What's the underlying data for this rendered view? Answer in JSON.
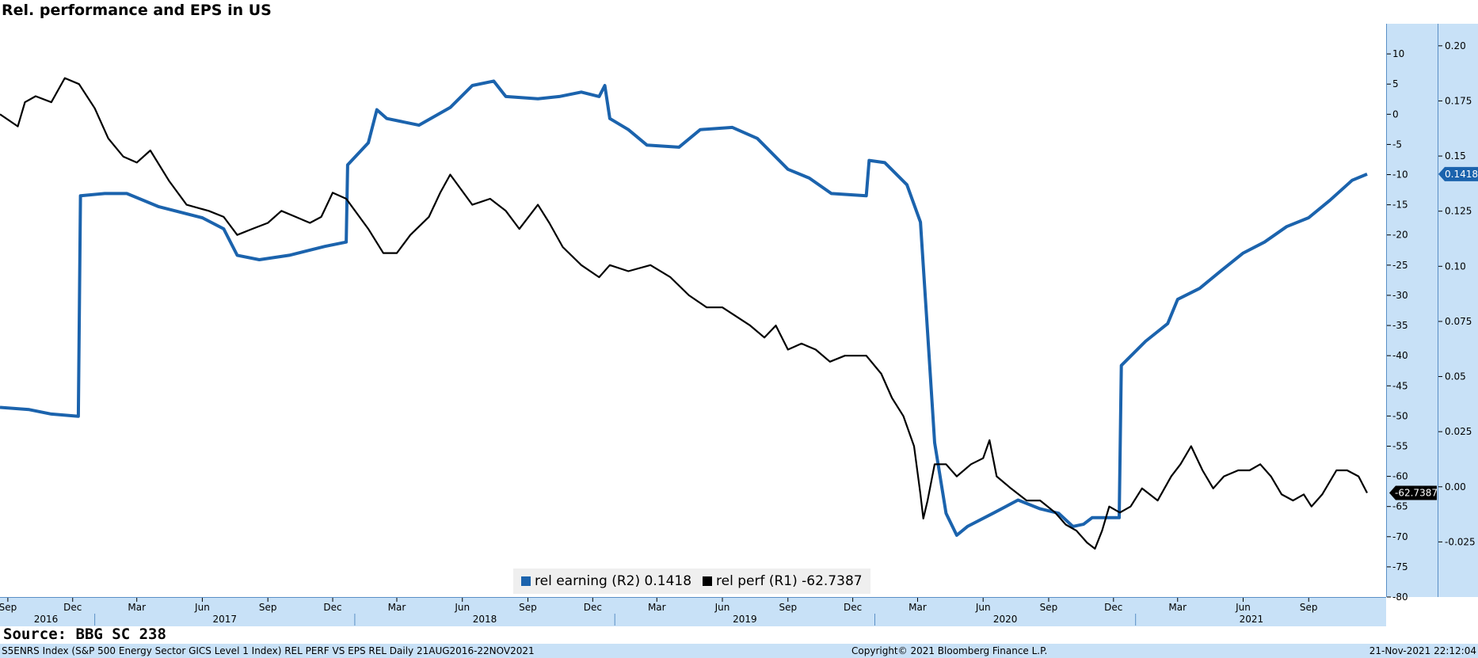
{
  "title": "Rel. performance and EPS in US",
  "source": "Source: BBG SC 238",
  "footer": {
    "left": "S5ENRS Index (S&P 500 Energy Sector GICS Level 1 Index) REL PERF VS EPS REL  Daily 21AUG2016-22NOV2021",
    "center": "Copyright© 2021 Bloomberg Finance L.P.",
    "right": "21-Nov-2021 22:12:04"
  },
  "colors": {
    "rel_earning": "#1b63ad",
    "rel_perf": "#000000",
    "axis_panel": "#c8e1f7"
  },
  "legend": [
    {
      "label": "rel earning (R2) 0.1418",
      "color": "#1b63ad"
    },
    {
      "label": "rel perf (R1) -62.7387",
      "color": "#000000"
    }
  ],
  "chart_data": {
    "type": "line",
    "title": "Rel. performance and EPS in US",
    "x_range": [
      "2016-08-21",
      "2021-11-22"
    ],
    "x_month_ticks": [
      "Sep",
      "Dec",
      "Mar",
      "Jun",
      "Sep",
      "Dec",
      "Mar",
      "Jun",
      "Sep",
      "Dec",
      "Mar",
      "Jun",
      "Sep",
      "Dec",
      "Mar",
      "Jun",
      "Sep",
      "Dec",
      "Mar",
      "Jun",
      "Sep"
    ],
    "x_year_labels": [
      "2016",
      "2017",
      "2018",
      "2019",
      "2020",
      "2021"
    ],
    "axes": {
      "R1": {
        "range": [
          -80,
          15
        ],
        "ticks": [
          "10",
          "5",
          "0",
          "-5",
          "-10",
          "-15",
          "-20",
          "-25",
          "-30",
          "-35",
          "-40",
          "-45",
          "-50",
          "-55",
          "-60",
          "-65",
          "-70",
          "-75",
          "-80"
        ]
      },
      "R2": {
        "range": [
          -0.05,
          0.21
        ],
        "ticks": [
          "0.20",
          "0.175",
          "0.15",
          "0.125",
          "0.10",
          "0.075",
          "0.05",
          "0.025",
          "0.00",
          "-0.025"
        ]
      }
    },
    "last_value_labels": {
      "rel_perf": "-62.7387",
      "rel_earning": "0.1418"
    },
    "series": [
      {
        "name": "rel earning (R2)",
        "axis": "R2",
        "color": "#1b63ad",
        "points": [
          [
            "2016-08-21",
            0.036
          ],
          [
            "2016-10-01",
            0.035
          ],
          [
            "2016-11-01",
            0.033
          ],
          [
            "2016-12-09",
            0.032
          ],
          [
            "2016-12-12",
            0.132
          ],
          [
            "2017-01-15",
            0.133
          ],
          [
            "2017-02-15",
            0.133
          ],
          [
            "2017-04-01",
            0.127
          ],
          [
            "2017-06-01",
            0.122
          ],
          [
            "2017-07-01",
            0.117
          ],
          [
            "2017-07-20",
            0.105
          ],
          [
            "2017-08-20",
            0.103
          ],
          [
            "2017-10-01",
            0.105
          ],
          [
            "2017-11-20",
            0.109
          ],
          [
            "2017-12-20",
            0.111
          ],
          [
            "2017-12-22",
            0.146
          ],
          [
            "2018-01-20",
            0.156
          ],
          [
            "2018-02-01",
            0.171
          ],
          [
            "2018-02-15",
            0.167
          ],
          [
            "2018-04-01",
            0.164
          ],
          [
            "2018-05-15",
            0.172
          ],
          [
            "2018-06-15",
            0.182
          ],
          [
            "2018-07-15",
            0.184
          ],
          [
            "2018-08-01",
            0.177
          ],
          [
            "2018-09-15",
            0.176
          ],
          [
            "2018-10-15",
            0.177
          ],
          [
            "2018-11-15",
            0.179
          ],
          [
            "2018-12-10",
            0.177
          ],
          [
            "2018-12-18",
            0.182
          ],
          [
            "2018-12-25",
            0.167
          ],
          [
            "2019-01-20",
            0.162
          ],
          [
            "2019-02-15",
            0.155
          ],
          [
            "2019-04-01",
            0.154
          ],
          [
            "2019-05-01",
            0.162
          ],
          [
            "2019-06-15",
            0.163
          ],
          [
            "2019-07-20",
            0.158
          ],
          [
            "2019-09-01",
            0.144
          ],
          [
            "2019-10-01",
            0.14
          ],
          [
            "2019-11-01",
            0.133
          ],
          [
            "2019-12-20",
            0.132
          ],
          [
            "2019-12-24",
            0.148
          ],
          [
            "2020-01-15",
            0.147
          ],
          [
            "2020-02-15",
            0.137
          ],
          [
            "2020-03-05",
            0.12
          ],
          [
            "2020-03-15",
            0.07
          ],
          [
            "2020-03-25",
            0.02
          ],
          [
            "2020-04-10",
            -0.012
          ],
          [
            "2020-04-25",
            -0.022
          ],
          [
            "2020-05-10",
            -0.018
          ],
          [
            "2020-06-15",
            -0.012
          ],
          [
            "2020-07-20",
            -0.006
          ],
          [
            "2020-08-20",
            -0.01
          ],
          [
            "2020-09-15",
            -0.012
          ],
          [
            "2020-10-05",
            -0.018
          ],
          [
            "2020-10-20",
            -0.017
          ],
          [
            "2020-11-01",
            -0.014
          ],
          [
            "2020-12-09",
            -0.014
          ],
          [
            "2020-12-12",
            0.055
          ],
          [
            "2021-01-15",
            0.066
          ],
          [
            "2021-02-15",
            0.074
          ],
          [
            "2021-03-01",
            0.085
          ],
          [
            "2021-04-01",
            0.09
          ],
          [
            "2021-05-01",
            0.098
          ],
          [
            "2021-06-01",
            0.106
          ],
          [
            "2021-07-01",
            0.111
          ],
          [
            "2021-08-01",
            0.118
          ],
          [
            "2021-09-01",
            0.122
          ],
          [
            "2021-10-01",
            0.13
          ],
          [
            "2021-11-01",
            0.139
          ],
          [
            "2021-11-22",
            0.1418
          ]
        ]
      },
      {
        "name": "rel perf (R1)",
        "axis": "R1",
        "color": "#000000",
        "points": [
          [
            "2016-08-21",
            0
          ],
          [
            "2016-09-15",
            -2
          ],
          [
            "2016-09-25",
            2
          ],
          [
            "2016-10-10",
            3
          ],
          [
            "2016-11-01",
            2
          ],
          [
            "2016-11-20",
            6
          ],
          [
            "2016-12-10",
            5
          ],
          [
            "2017-01-01",
            1
          ],
          [
            "2017-01-20",
            -4
          ],
          [
            "2017-02-10",
            -7
          ],
          [
            "2017-03-01",
            -8
          ],
          [
            "2017-03-20",
            -6
          ],
          [
            "2017-04-15",
            -11
          ],
          [
            "2017-05-10",
            -15
          ],
          [
            "2017-06-10",
            -16
          ],
          [
            "2017-07-01",
            -17
          ],
          [
            "2017-07-20",
            -20
          ],
          [
            "2017-08-10",
            -19
          ],
          [
            "2017-09-01",
            -18
          ],
          [
            "2017-09-20",
            -16
          ],
          [
            "2017-10-10",
            -17
          ],
          [
            "2017-10-30",
            -18
          ],
          [
            "2017-11-15",
            -17
          ],
          [
            "2017-12-01",
            -13
          ],
          [
            "2017-12-20",
            -14
          ],
          [
            "2018-01-20",
            -19
          ],
          [
            "2018-02-10",
            -23
          ],
          [
            "2018-03-01",
            -23
          ],
          [
            "2018-03-20",
            -20
          ],
          [
            "2018-04-15",
            -17
          ],
          [
            "2018-05-01",
            -13
          ],
          [
            "2018-05-15",
            -10
          ],
          [
            "2018-06-15",
            -15
          ],
          [
            "2018-07-10",
            -14
          ],
          [
            "2018-08-01",
            -16
          ],
          [
            "2018-08-20",
            -19
          ],
          [
            "2018-09-15",
            -15
          ],
          [
            "2018-10-01",
            -18
          ],
          [
            "2018-10-20",
            -22
          ],
          [
            "2018-11-15",
            -25
          ],
          [
            "2018-12-10",
            -27
          ],
          [
            "2018-12-25",
            -25
          ],
          [
            "2019-01-20",
            -26
          ],
          [
            "2019-02-20",
            -25
          ],
          [
            "2019-03-20",
            -27
          ],
          [
            "2019-04-15",
            -30
          ],
          [
            "2019-05-10",
            -32
          ],
          [
            "2019-06-01",
            -32
          ],
          [
            "2019-07-10",
            -35
          ],
          [
            "2019-07-30",
            -37
          ],
          [
            "2019-08-15",
            -35
          ],
          [
            "2019-09-01",
            -39
          ],
          [
            "2019-09-20",
            -38
          ],
          [
            "2019-10-10",
            -39
          ],
          [
            "2019-10-30",
            -41
          ],
          [
            "2019-11-20",
            -40
          ],
          [
            "2019-12-20",
            -40
          ],
          [
            "2020-01-10",
            -43
          ],
          [
            "2020-01-25",
            -47
          ],
          [
            "2020-02-10",
            -50
          ],
          [
            "2020-02-25",
            -55
          ],
          [
            "2020-03-05",
            -63
          ],
          [
            "2020-03-09",
            -67
          ],
          [
            "2020-03-15",
            -64
          ],
          [
            "2020-03-25",
            -58
          ],
          [
            "2020-04-10",
            -58
          ],
          [
            "2020-04-25",
            -60
          ],
          [
            "2020-05-15",
            -58
          ],
          [
            "2020-06-01",
            -57
          ],
          [
            "2020-06-10",
            -54
          ],
          [
            "2020-06-20",
            -60
          ],
          [
            "2020-07-10",
            -62
          ],
          [
            "2020-08-01",
            -64
          ],
          [
            "2020-08-20",
            -64
          ],
          [
            "2020-09-10",
            -66
          ],
          [
            "2020-09-25",
            -68
          ],
          [
            "2020-10-10",
            -69
          ],
          [
            "2020-10-25",
            -71
          ],
          [
            "2020-11-05",
            -72
          ],
          [
            "2020-11-15",
            -69
          ],
          [
            "2020-11-25",
            -65
          ],
          [
            "2020-12-10",
            -66
          ],
          [
            "2020-12-25",
            -65
          ],
          [
            "2021-01-10",
            -62
          ],
          [
            "2021-02-01",
            -64
          ],
          [
            "2021-02-20",
            -60
          ],
          [
            "2021-03-05",
            -58
          ],
          [
            "2021-03-20",
            -55
          ],
          [
            "2021-04-05",
            -59
          ],
          [
            "2021-04-20",
            -62
          ],
          [
            "2021-05-05",
            -60
          ],
          [
            "2021-05-25",
            -59
          ],
          [
            "2021-06-10",
            -59
          ],
          [
            "2021-06-25",
            -58
          ],
          [
            "2021-07-10",
            -60
          ],
          [
            "2021-07-25",
            -63
          ],
          [
            "2021-08-10",
            -64
          ],
          [
            "2021-08-25",
            -63
          ],
          [
            "2021-09-05",
            -65
          ],
          [
            "2021-09-20",
            -63
          ],
          [
            "2021-10-10",
            -59
          ],
          [
            "2021-10-25",
            -59
          ],
          [
            "2021-11-10",
            -60
          ],
          [
            "2021-11-22",
            -62.7387
          ]
        ]
      }
    ]
  }
}
